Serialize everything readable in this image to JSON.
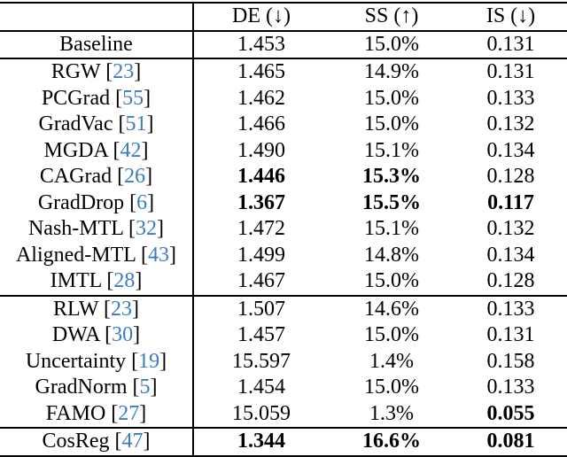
{
  "colors": {
    "citation_blue": "#3b7cc0",
    "text": "#000000",
    "rule": "#000000",
    "background": "#ffffff"
  },
  "table": {
    "header": {
      "col0": "",
      "col1": "DE (↓)",
      "col2": "SS (↑)",
      "col3": "IS (↓)"
    },
    "cite_open": "[",
    "cite_close": "]",
    "groups": [
      {
        "rows": [
          {
            "method": "Baseline",
            "cite": null,
            "values": [
              "1.453",
              "15.0%",
              "0.131"
            ],
            "bold": [
              false,
              false,
              false
            ]
          }
        ]
      },
      {
        "rows": [
          {
            "method": "RGW",
            "cite": "23",
            "values": [
              "1.465",
              "14.9%",
              "0.131"
            ],
            "bold": [
              false,
              false,
              false
            ]
          },
          {
            "method": "PCGrad",
            "cite": "55",
            "values": [
              "1.462",
              "15.0%",
              "0.133"
            ],
            "bold": [
              false,
              false,
              false
            ]
          },
          {
            "method": "GradVac",
            "cite": "51",
            "values": [
              "1.466",
              "15.0%",
              "0.132"
            ],
            "bold": [
              false,
              false,
              false
            ]
          },
          {
            "method": "MGDA",
            "cite": "42",
            "values": [
              "1.490",
              "15.1%",
              "0.134"
            ],
            "bold": [
              false,
              false,
              false
            ]
          },
          {
            "method": "CAGrad",
            "cite": "26",
            "values": [
              "1.446",
              "15.3%",
              "0.128"
            ],
            "bold": [
              true,
              true,
              false
            ]
          },
          {
            "method": "GradDrop",
            "cite": "6",
            "values": [
              "1.367",
              "15.5%",
              "0.117"
            ],
            "bold": [
              true,
              true,
              true
            ]
          },
          {
            "method": "Nash-MTL",
            "cite": "32",
            "values": [
              "1.472",
              "15.1%",
              "0.132"
            ],
            "bold": [
              false,
              false,
              false
            ]
          },
          {
            "method": "Aligned-MTL",
            "cite": "43",
            "values": [
              "1.499",
              "14.8%",
              "0.134"
            ],
            "bold": [
              false,
              false,
              false
            ]
          },
          {
            "method": "IMTL",
            "cite": "28",
            "values": [
              "1.467",
              "15.0%",
              "0.128"
            ],
            "bold": [
              false,
              false,
              false
            ]
          }
        ]
      },
      {
        "rows": [
          {
            "method": "RLW",
            "cite": "23",
            "values": [
              "1.507",
              "14.6%",
              "0.133"
            ],
            "bold": [
              false,
              false,
              false
            ]
          },
          {
            "method": "DWA",
            "cite": "30",
            "values": [
              "1.457",
              "15.0%",
              "0.131"
            ],
            "bold": [
              false,
              false,
              false
            ]
          },
          {
            "method": "Uncertainty",
            "cite": "19",
            "values": [
              "15.597",
              "1.4%",
              "0.158"
            ],
            "bold": [
              false,
              false,
              false
            ]
          },
          {
            "method": "GradNorm",
            "cite": "5",
            "values": [
              "1.454",
              "15.0%",
              "0.133"
            ],
            "bold": [
              false,
              false,
              false
            ]
          },
          {
            "method": "FAMO",
            "cite": "27",
            "values": [
              "15.059",
              "1.3%",
              "0.055"
            ],
            "bold": [
              false,
              false,
              true
            ]
          }
        ]
      },
      {
        "rows": [
          {
            "method": "CosReg",
            "cite": "47",
            "values": [
              "1.344",
              "16.6%",
              "0.081"
            ],
            "bold": [
              true,
              true,
              true
            ]
          }
        ]
      }
    ]
  }
}
